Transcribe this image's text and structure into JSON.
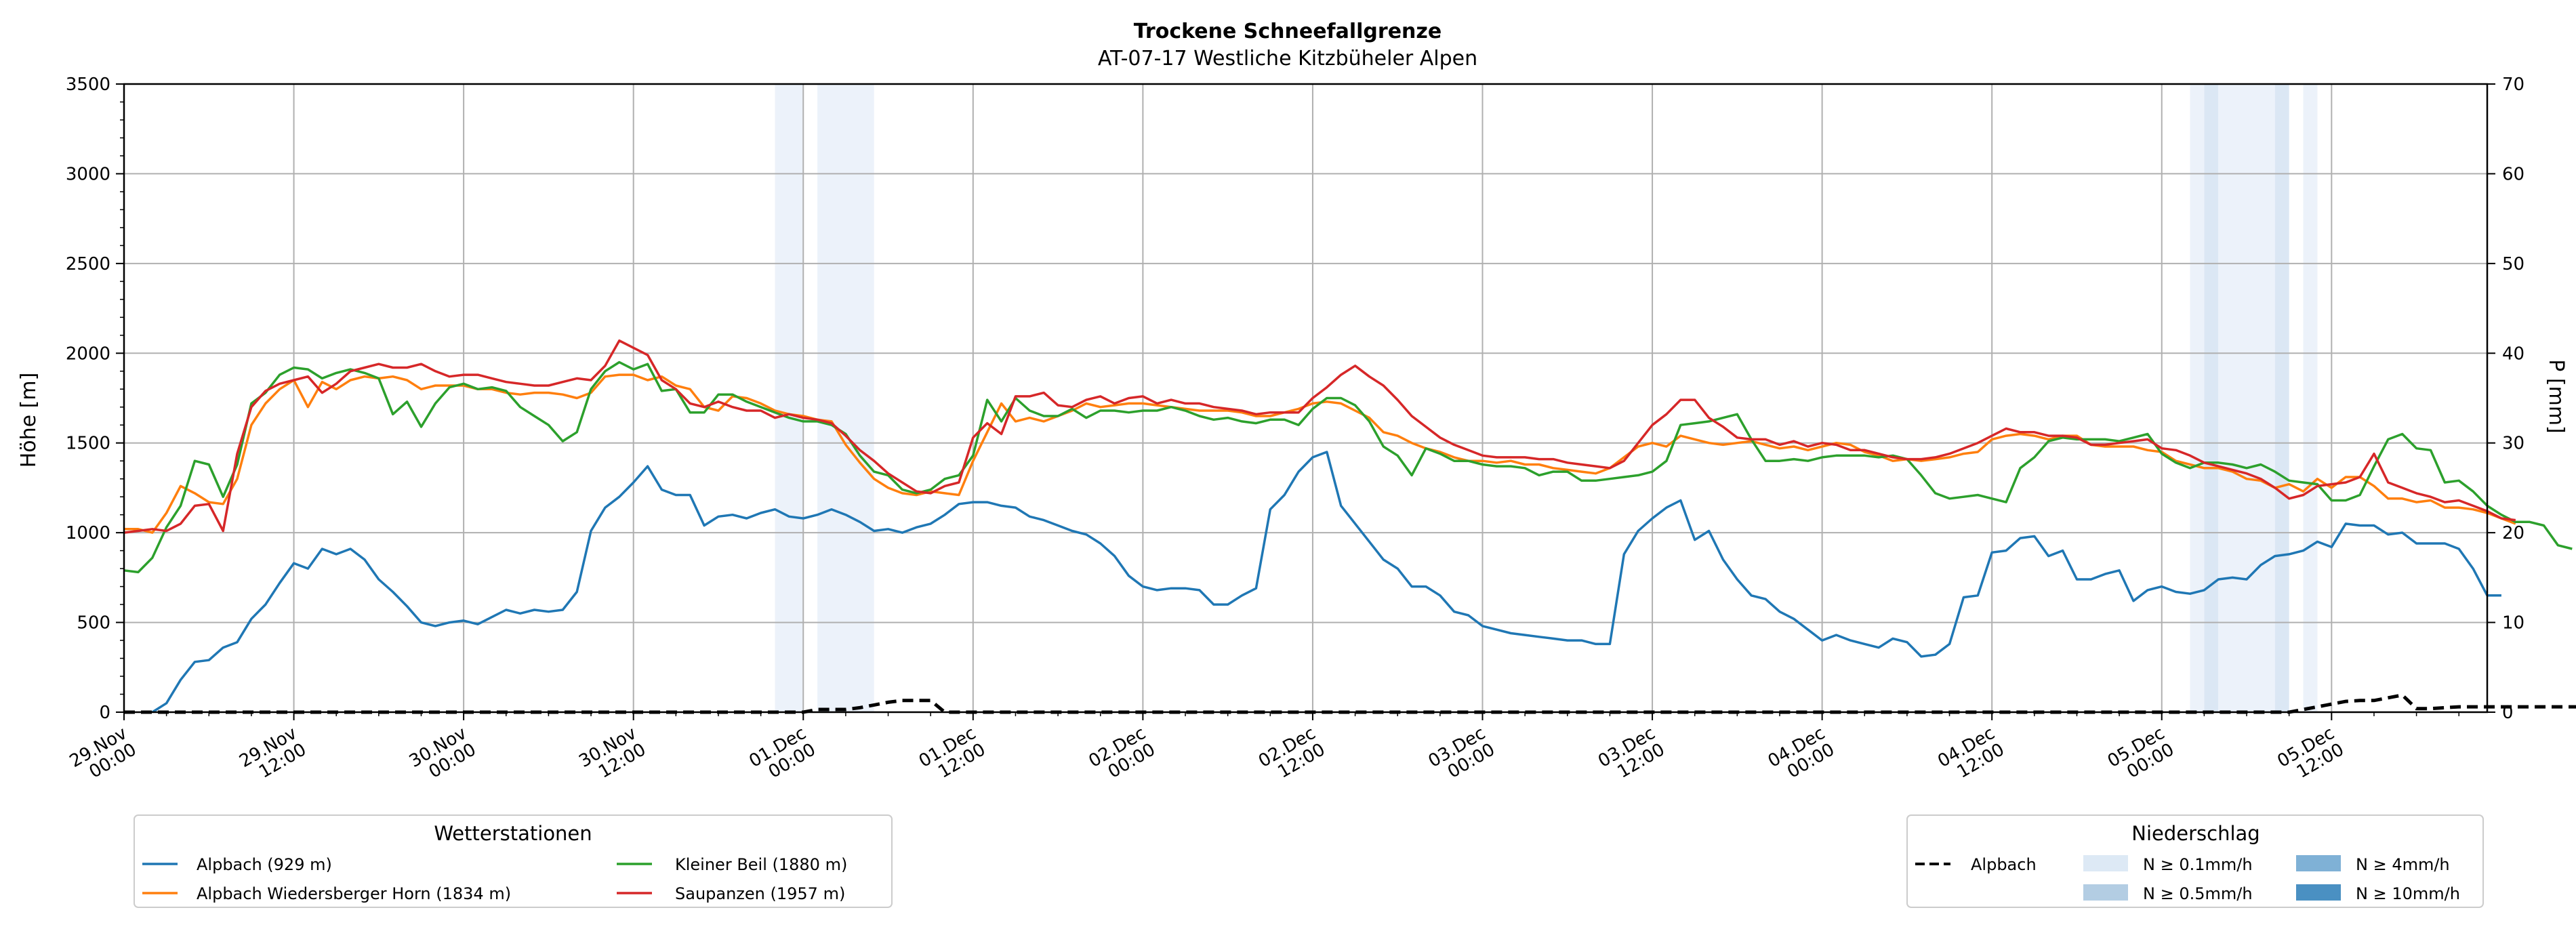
{
  "chart_data": {
    "type": "line",
    "title": "Trockene Schneefallgrenze",
    "subtitle": "AT-07-17 Westliche Kitzbüheler Alpen",
    "ylabel_left": "Höhe [m]",
    "ylabel_right": "P [mm]",
    "ylim_left": [
      0,
      3500
    ],
    "ylim_right": [
      0,
      70
    ],
    "yticks_left": [
      0,
      500,
      1000,
      1500,
      2000,
      2500,
      3000,
      3500
    ],
    "yticks_right": [
      0,
      10,
      20,
      30,
      40,
      50,
      60,
      70
    ],
    "xlim_hours": [
      0,
      167
    ],
    "x_start": "29.Nov 00:00",
    "x_step": "1h",
    "xticks": [
      {
        "hour": 0,
        "line1": "29.Nov",
        "line2": "00:00"
      },
      {
        "hour": 12,
        "line1": "29.Nov",
        "line2": "12:00"
      },
      {
        "hour": 24,
        "line1": "30.Nov",
        "line2": "00:00"
      },
      {
        "hour": 36,
        "line1": "30.Nov",
        "line2": "12:00"
      },
      {
        "hour": 48,
        "line1": "01.Dec",
        "line2": "00:00"
      },
      {
        "hour": 60,
        "line1": "01.Dec",
        "line2": "12:00"
      },
      {
        "hour": 72,
        "line1": "02.Dec",
        "line2": "00:00"
      },
      {
        "hour": 84,
        "line1": "02.Dec",
        "line2": "12:00"
      },
      {
        "hour": 96,
        "line1": "03.Dec",
        "line2": "00:00"
      },
      {
        "hour": 108,
        "line1": "03.Dec",
        "line2": "12:00"
      },
      {
        "hour": 120,
        "line1": "04.Dec",
        "line2": "00:00"
      },
      {
        "hour": 132,
        "line1": "04.Dec",
        "line2": "12:00"
      },
      {
        "hour": 144,
        "line1": "05.Dec",
        "line2": "00:00"
      },
      {
        "hour": 156,
        "line1": "05.Dec",
        "line2": "12:00"
      }
    ],
    "grid": true,
    "series": [
      {
        "name": "Alpbach (929 m)",
        "color": "#1f77b4",
        "values": [
          null,
          null,
          -10,
          50,
          180,
          280,
          290,
          360,
          390,
          520,
          600,
          720,
          830,
          800,
          910,
          880,
          910,
          850,
          740,
          670,
          590,
          500,
          480,
          500,
          510,
          490,
          530,
          570,
          550,
          570,
          560,
          570,
          670,
          1010,
          1140,
          1200,
          1280,
          1370,
          1240,
          1210,
          1210,
          1040,
          1090,
          1100,
          1080,
          1110,
          1130,
          1090,
          1080,
          1100,
          1130,
          1100,
          1060,
          1010,
          1020,
          1000,
          1030,
          1050,
          1100,
          1160,
          1170,
          1170,
          1150,
          1140,
          1090,
          1070,
          1040,
          1010,
          990,
          940,
          870,
          760,
          700,
          680,
          690,
          690,
          680,
          600,
          600,
          650,
          690,
          1130,
          1210,
          1340,
          1420,
          1450,
          1150,
          1050,
          950,
          850,
          800,
          700,
          700,
          650,
          560,
          540,
          480,
          460,
          440,
          430,
          420,
          410,
          400,
          400,
          380,
          380,
          880,
          1010,
          1080,
          1140,
          1180,
          960,
          1010,
          850,
          740,
          650,
          630,
          560,
          520,
          460,
          400,
          430,
          400,
          380,
          360,
          410,
          390,
          310,
          320,
          380,
          640,
          650,
          890,
          900,
          970,
          980,
          870,
          900,
          740,
          740,
          770,
          790,
          620,
          680,
          700,
          670,
          660,
          680,
          740,
          750,
          740,
          820,
          870,
          880,
          900,
          950,
          920,
          1050,
          1040,
          1040,
          990,
          1000,
          940,
          940,
          940,
          910,
          800,
          650,
          650
        ]
      },
      {
        "name": "Alpbach Wiedersberger Horn (1834 m)",
        "color": "#ff7f0e",
        "values": [
          1020,
          1020,
          1000,
          1110,
          1260,
          1220,
          1170,
          1160,
          1300,
          1600,
          1720,
          1800,
          1850,
          1700,
          1840,
          1800,
          1850,
          1870,
          1860,
          1870,
          1850,
          1800,
          1820,
          1820,
          1820,
          1800,
          1800,
          1780,
          1770,
          1780,
          1780,
          1770,
          1750,
          1780,
          1870,
          1880,
          1880,
          1850,
          1870,
          1820,
          1800,
          1700,
          1680,
          1760,
          1750,
          1720,
          1680,
          1660,
          1650,
          1630,
          1620,
          1490,
          1390,
          1300,
          1250,
          1220,
          1210,
          1230,
          1220,
          1210,
          1400,
          1560,
          1720,
          1620,
          1640,
          1620,
          1650,
          1680,
          1720,
          1700,
          1710,
          1720,
          1720,
          1710,
          1700,
          1690,
          1680,
          1680,
          1680,
          1670,
          1650,
          1650,
          1670,
          1690,
          1720,
          1730,
          1720,
          1680,
          1640,
          1560,
          1540,
          1500,
          1470,
          1450,
          1420,
          1400,
          1400,
          1390,
          1400,
          1380,
          1380,
          1360,
          1350,
          1340,
          1330,
          1360,
          1420,
          1480,
          1500,
          1480,
          1540,
          1520,
          1500,
          1490,
          1500,
          1510,
          1490,
          1470,
          1480,
          1460,
          1480,
          1500,
          1490,
          1450,
          1430,
          1400,
          1410,
          1400,
          1410,
          1420,
          1440,
          1450,
          1520,
          1540,
          1550,
          1540,
          1520,
          1540,
          1540,
          1490,
          1480,
          1480,
          1480,
          1460,
          1450,
          1400,
          1380,
          1360,
          1360,
          1340,
          1300,
          1290,
          1250,
          1270,
          1230,
          1300,
          1250,
          1310,
          1310,
          1260,
          1190,
          1190,
          1170,
          1180,
          1140,
          1140,
          1130,
          1110,
          1080,
          1050
        ]
      },
      {
        "name": "Kleiner Beil (1880 m)",
        "color": "#2ca02c",
        "values": [
          790,
          780,
          860,
          1030,
          1150,
          1400,
          1380,
          1200,
          1380,
          1720,
          1780,
          1880,
          1920,
          1910,
          1860,
          1890,
          1910,
          1890,
          1860,
          1660,
          1730,
          1590,
          1720,
          1810,
          1830,
          1800,
          1810,
          1790,
          1700,
          1650,
          1600,
          1510,
          1560,
          1800,
          1900,
          1950,
          1910,
          1940,
          1790,
          1800,
          1670,
          1670,
          1770,
          1770,
          1730,
          1700,
          1670,
          1640,
          1620,
          1620,
          1600,
          1550,
          1430,
          1340,
          1320,
          1240,
          1220,
          1240,
          1300,
          1320,
          1430,
          1740,
          1620,
          1750,
          1680,
          1650,
          1650,
          1690,
          1640,
          1680,
          1680,
          1670,
          1680,
          1680,
          1700,
          1680,
          1650,
          1630,
          1640,
          1620,
          1610,
          1630,
          1630,
          1600,
          1690,
          1750,
          1750,
          1710,
          1620,
          1480,
          1430,
          1320,
          1470,
          1440,
          1400,
          1400,
          1380,
          1370,
          1370,
          1360,
          1320,
          1340,
          1340,
          1290,
          1290,
          1300,
          1310,
          1320,
          1340,
          1400,
          1600,
          1610,
          1620,
          1640,
          1660,
          1520,
          1400,
          1400,
          1410,
          1400,
          1420,
          1430,
          1430,
          1430,
          1420,
          1430,
          1410,
          1320,
          1220,
          1190,
          1200,
          1210,
          1190,
          1170,
          1360,
          1420,
          1510,
          1530,
          1520,
          1520,
          1520,
          1510,
          1530,
          1550,
          1440,
          1390,
          1360,
          1390,
          1390,
          1380,
          1360,
          1380,
          1340,
          1290,
          1280,
          1270,
          1180,
          1180,
          1210,
          1370,
          1520,
          1550,
          1470,
          1460,
          1280,
          1290,
          1230,
          1150,
          1100,
          1060,
          1060,
          1040,
          930,
          910
        ]
      },
      {
        "name": "Saupanzen (1957 m)",
        "color": "#d62728",
        "values": [
          1000,
          1010,
          1020,
          1010,
          1050,
          1150,
          1160,
          1010,
          1440,
          1700,
          1790,
          1830,
          1850,
          1870,
          1780,
          1830,
          1900,
          1920,
          1940,
          1920,
          1920,
          1940,
          1900,
          1870,
          1880,
          1880,
          1860,
          1840,
          1830,
          1820,
          1820,
          1840,
          1860,
          1850,
          1930,
          2070,
          2030,
          1990,
          1850,
          1800,
          1720,
          1700,
          1730,
          1700,
          1680,
          1680,
          1640,
          1660,
          1640,
          1630,
          1610,
          1540,
          1460,
          1400,
          1330,
          1280,
          1230,
          1220,
          1260,
          1280,
          1530,
          1610,
          1550,
          1760,
          1760,
          1780,
          1710,
          1700,
          1740,
          1760,
          1720,
          1750,
          1760,
          1720,
          1740,
          1720,
          1720,
          1700,
          1690,
          1680,
          1660,
          1670,
          1670,
          1670,
          1750,
          1810,
          1880,
          1930,
          1870,
          1820,
          1740,
          1650,
          1590,
          1530,
          1490,
          1460,
          1430,
          1420,
          1420,
          1420,
          1410,
          1410,
          1390,
          1380,
          1370,
          1360,
          1400,
          1500,
          1600,
          1660,
          1740,
          1740,
          1640,
          1590,
          1530,
          1520,
          1520,
          1490,
          1510,
          1480,
          1500,
          1490,
          1460,
          1460,
          1440,
          1420,
          1410,
          1410,
          1420,
          1440,
          1470,
          1500,
          1540,
          1580,
          1560,
          1560,
          1540,
          1540,
          1530,
          1490,
          1490,
          1500,
          1510,
          1520,
          1470,
          1460,
          1430,
          1390,
          1370,
          1350,
          1330,
          1300,
          1250,
          1190,
          1210,
          1260,
          1270,
          1280,
          1310,
          1440,
          1280,
          1250,
          1220,
          1200,
          1170,
          1180,
          1150,
          1120,
          1080,
          1070
        ]
      }
    ],
    "precipitation": {
      "name": "Alpbach",
      "unit": "mm",
      "style": "dashed",
      "color": "#000000",
      "values": [
        0,
        0,
        0,
        0,
        0,
        0,
        0,
        0,
        0,
        0,
        0,
        0,
        0,
        0,
        0,
        0,
        0,
        0,
        0,
        0,
        0,
        0,
        0,
        0,
        0,
        0,
        0,
        0,
        0,
        0,
        0,
        0,
        0,
        0,
        0,
        0,
        0,
        0,
        0,
        0,
        0,
        0,
        0,
        0,
        0,
        0,
        0,
        0,
        0,
        0.3,
        0.3,
        0.3,
        0.5,
        0.8,
        1.1,
        1.3,
        1.3,
        1.3,
        0,
        0,
        0,
        0,
        0,
        0,
        0,
        0,
        0,
        0,
        0,
        0,
        0,
        0,
        0,
        0,
        0,
        0,
        0,
        0,
        0,
        0,
        0,
        0,
        0,
        0,
        0,
        0,
        0,
        0,
        0,
        0,
        0,
        0,
        0,
        0,
        0,
        0,
        0,
        0,
        0,
        0,
        0,
        0,
        0,
        0,
        0,
        0,
        0,
        0,
        0,
        0,
        0,
        0,
        0,
        0,
        0,
        0,
        0,
        0,
        0,
        0,
        0,
        0,
        0,
        0,
        0,
        0,
        0,
        0,
        0,
        0,
        0,
        0,
        0,
        0,
        0,
        0,
        0,
        0,
        0,
        0,
        0,
        0,
        0,
        0,
        0,
        0,
        0,
        0,
        0,
        0,
        0,
        0,
        0,
        0,
        0.3,
        0.6,
        0.9,
        1.2,
        1.3,
        1.3,
        1.6,
        1.9,
        0.4,
        0.4,
        0.5,
        0.6,
        0.6,
        0.6,
        0.6,
        0.6,
        0.6,
        0.6,
        0.6,
        0.6,
        0.6,
        0.6,
        0.6,
        0.6,
        0.6,
        0.6
      ]
    },
    "precip_bands": [
      {
        "from": 46,
        "to": 48,
        "level": "N ≥ 0.1mm/h"
      },
      {
        "from": 49,
        "to": 53,
        "level": "N ≥ 0.1mm/h"
      },
      {
        "from": 146,
        "to": 147,
        "level": "N ≥ 0.1mm/h"
      },
      {
        "from": 147,
        "to": 148,
        "level": "N ≥ 0.5mm/h"
      },
      {
        "from": 148,
        "to": 152,
        "level": "N ≥ 0.1mm/h"
      },
      {
        "from": 152,
        "to": 153,
        "level": "N ≥ 0.5mm/h"
      },
      {
        "from": 154,
        "to": 155,
        "level": "N ≥ 0.1mm/h"
      }
    ],
    "legend_stations": {
      "title": "Wetterstationen",
      "placement": "bottom-left",
      "entries": [
        "Alpbach (929 m)",
        "Alpbach Wiedersberger Horn (1834 m)",
        "Kleiner Beil (1880 m)",
        "Saupanzen (1957 m)"
      ]
    },
    "legend_precip": {
      "title": "Niederschlag",
      "placement": "bottom-right",
      "line_entry": "Alpbach",
      "levels": [
        {
          "label": "N ≥ 0.1mm/h",
          "color": "#dde9f5"
        },
        {
          "label": "N ≥ 0.5mm/h",
          "color": "#b3cde3"
        },
        {
          "label": "N ≥ 4mm/h",
          "color": "#7fb1d6"
        },
        {
          "label": "N ≥ 10mm/h",
          "color": "#4a90c2"
        }
      ]
    }
  },
  "colors": {
    "band_light": "#ecf2fa",
    "band_medium": "#dbe7f4",
    "grid": "#b0b0b0"
  }
}
